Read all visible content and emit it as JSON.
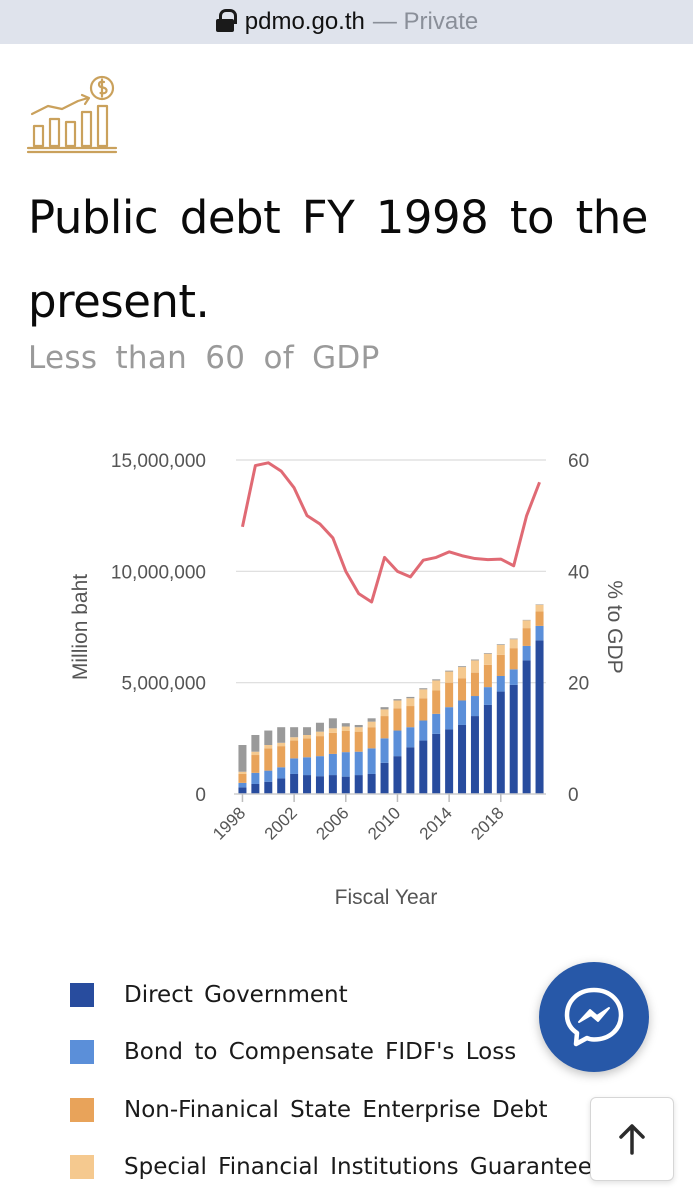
{
  "browser": {
    "domain": "pdmo.go.th",
    "privacy_label": "— Private"
  },
  "page": {
    "title": "Public debt FY 1998 to the present.",
    "subtitle": "Less than 60 of GDP"
  },
  "chart_data": {
    "type": "bar",
    "stacked": true,
    "xlabel": "Fiscal Year",
    "ylabel": "Million baht",
    "y2label": "% to GDP",
    "ylim": [
      0,
      15000000
    ],
    "y2lim": [
      0,
      60
    ],
    "yticks": [
      "0",
      "5,000,000",
      "10,000,000",
      "15,000,000"
    ],
    "y2ticks": [
      "0",
      "20",
      "40",
      "60"
    ],
    "xtick_labels": [
      "1998",
      "2002",
      "2006",
      "2010",
      "2014",
      "2018"
    ],
    "grid": true,
    "categories": [
      "1998",
      "1999",
      "2000",
      "2001",
      "2002",
      "2003",
      "2004",
      "2005",
      "2006",
      "2007",
      "2008",
      "2009",
      "2010",
      "2011",
      "2012",
      "2013",
      "2014",
      "2015",
      "2016",
      "2017",
      "2018",
      "2019",
      "2020",
      "2021"
    ],
    "series": [
      {
        "name": "Direct Government",
        "color": "#284c9e",
        "values": [
          300000,
          450000,
          550000,
          700000,
          900000,
          850000,
          800000,
          850000,
          780000,
          850000,
          900000,
          1400000,
          1700000,
          2100000,
          2400000,
          2700000,
          2900000,
          3100000,
          3500000,
          4000000,
          4600000,
          4900000,
          6000000,
          6900000
        ]
      },
      {
        "name": "Bond to Compensate FIDF's Loss",
        "color": "#5b8fd9",
        "values": [
          200000,
          500000,
          500000,
          500000,
          700000,
          800000,
          900000,
          950000,
          1100000,
          1050000,
          1150000,
          1100000,
          1150000,
          900000,
          900000,
          900000,
          1000000,
          1100000,
          900000,
          800000,
          700000,
          700000,
          650000,
          650000
        ]
      },
      {
        "name": "Non-Finanical State Enterprise Debt",
        "color": "#e8a35a",
        "values": [
          400000,
          800000,
          1000000,
          950000,
          800000,
          850000,
          900000,
          950000,
          950000,
          900000,
          950000,
          1000000,
          1000000,
          950000,
          1000000,
          1050000,
          1100000,
          1000000,
          1050000,
          1000000,
          950000,
          950000,
          800000,
          650000
        ]
      },
      {
        "name": "Special Financial Institutions Guaranteed",
        "color": "#f5c98f",
        "values": [
          100000,
          150000,
          150000,
          150000,
          150000,
          150000,
          200000,
          200000,
          200000,
          200000,
          250000,
          300000,
          350000,
          350000,
          400000,
          450000,
          500000,
          500000,
          550000,
          500000,
          450000,
          400000,
          350000,
          300000
        ]
      },
      {
        "name": "",
        "color": "#9a9a9a",
        "values": [
          1200000,
          750000,
          650000,
          700000,
          450000,
          350000,
          400000,
          450000,
          150000,
          100000,
          150000,
          100000,
          60000,
          60000,
          50000,
          50000,
          40000,
          40000,
          40000,
          30000,
          30000,
          30000,
          20000,
          20000
        ]
      }
    ],
    "line": {
      "color": "#e06a74",
      "values": [
        48,
        59,
        59.5,
        58,
        55,
        50,
        48.5,
        46,
        40,
        36,
        34.5,
        42.5,
        40,
        39,
        42,
        42.5,
        43.5,
        42.8,
        42.3,
        42.1,
        42.2,
        41,
        50,
        56
      ]
    }
  },
  "legend_items": [
    {
      "label": "Direct Government",
      "color": "#284c9e"
    },
    {
      "label": "Bond to Compensate FIDF's Loss",
      "color": "#5b8fd9"
    },
    {
      "label": "Non-Finanical State Enterprise Debt",
      "color": "#e8a35a"
    },
    {
      "label": "Special Financial Institutions Guaranteed",
      "color": "#f5c98f"
    }
  ],
  "buttons": {
    "messenger_icon": "messenger-icon",
    "scroll_top_icon": "arrow-up-icon"
  }
}
